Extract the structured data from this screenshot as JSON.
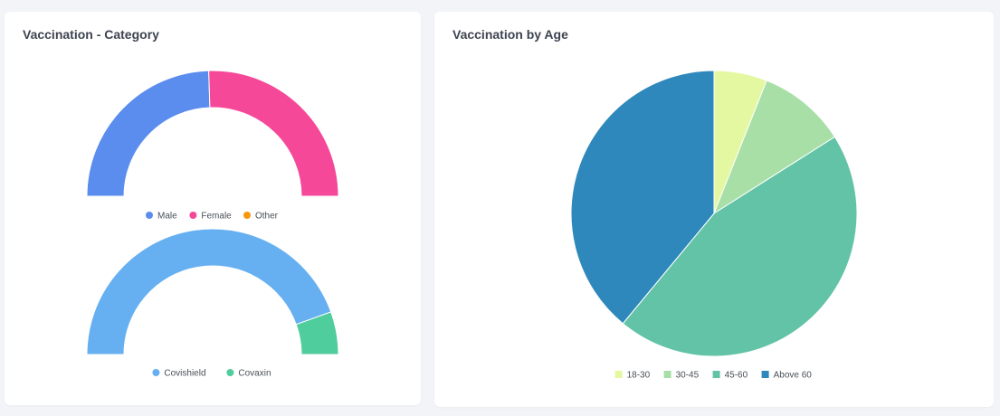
{
  "left_card": {
    "title": "Vaccination - Category"
  },
  "right_card": {
    "title": "Vaccination by Age"
  },
  "chart_data": [
    {
      "type": "pie",
      "variant": "semi-donut",
      "title": "",
      "series": [
        {
          "name": "Male",
          "value": 49,
          "color": "#5b8def"
        },
        {
          "name": "Female",
          "value": 51,
          "color": "#f64898"
        },
        {
          "name": "Other",
          "value": 0,
          "color": "#f7970d"
        }
      ],
      "legend": "bottom"
    },
    {
      "type": "pie",
      "variant": "semi-donut",
      "title": "",
      "series": [
        {
          "name": "Covishield",
          "value": 89,
          "color": "#66b0f1"
        },
        {
          "name": "Covaxin",
          "value": 11,
          "color": "#50cd9c"
        }
      ],
      "legend": "bottom"
    },
    {
      "type": "pie",
      "title": "",
      "series": [
        {
          "name": "18-30",
          "value": 6,
          "color": "#e4f7a1"
        },
        {
          "name": "30-45",
          "value": 10,
          "color": "#a8dfa7"
        },
        {
          "name": "45-60",
          "value": 45,
          "color": "#63c3a6"
        },
        {
          "name": "Above 60",
          "value": 39,
          "color": "#2e88bb"
        }
      ],
      "legend": "bottom"
    }
  ]
}
